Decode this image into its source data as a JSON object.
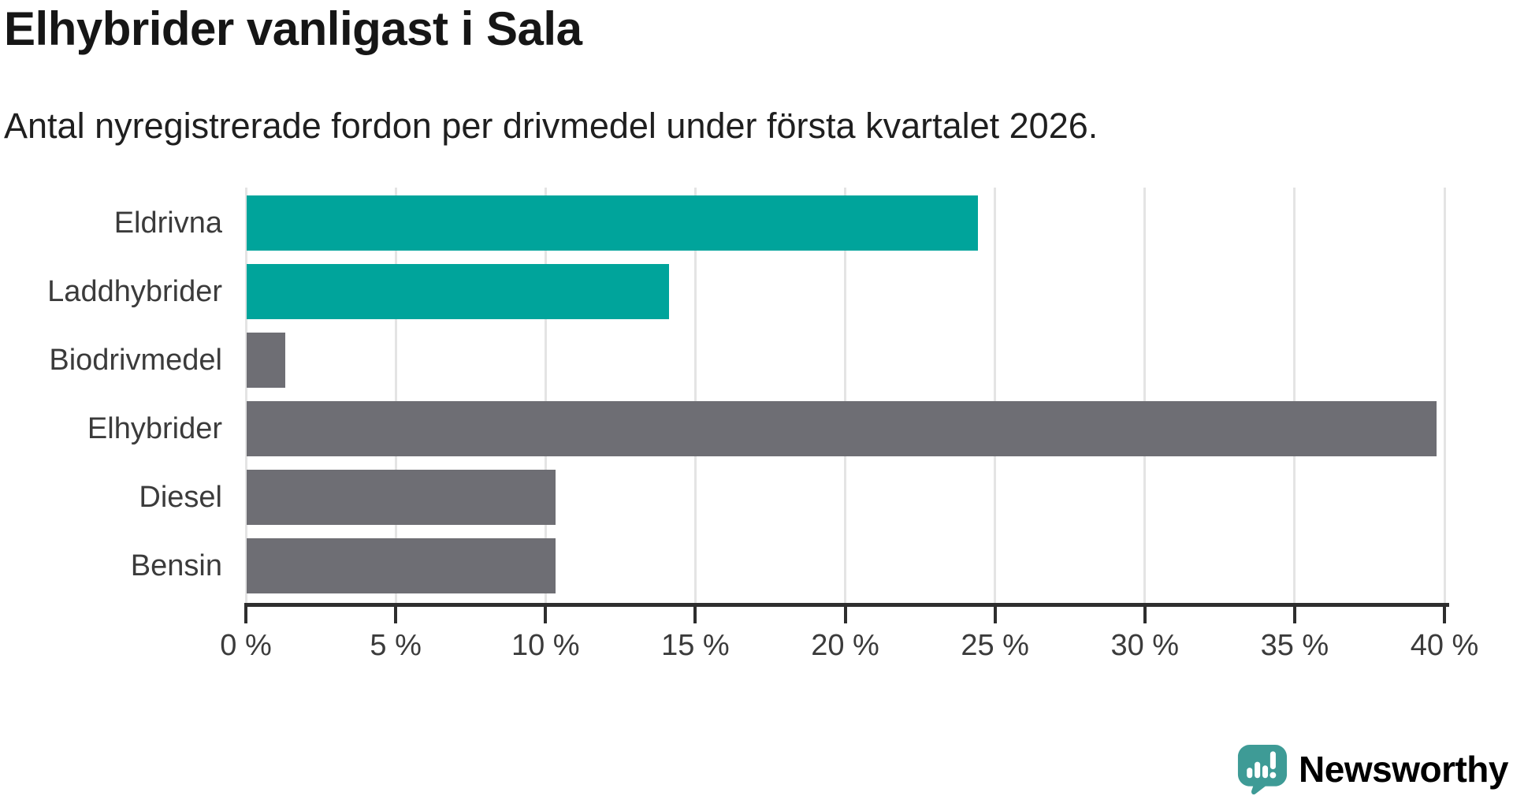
{
  "header": {
    "title": "Elhybrider vanligast i Sala",
    "subtitle": "Antal nyregistrerade fordon per drivmedel under första kvartalet 2026."
  },
  "chart_data": {
    "type": "bar",
    "orientation": "horizontal",
    "title": "Elhybrider vanligast i Sala",
    "subtitle": "Antal nyregistrerade fordon per drivmedel under första kvartalet 2026.",
    "categories": [
      "Eldrivna",
      "Laddhybrider",
      "Biodrivmedel",
      "Elhybrider",
      "Diesel",
      "Bensin"
    ],
    "values": [
      24.4,
      14.1,
      1.3,
      39.7,
      10.3,
      10.3
    ],
    "unit": "%",
    "bar_colors": [
      "#00A49B",
      "#00A49B",
      "#6E6E74",
      "#6E6E74",
      "#6E6E74",
      "#6E6E74"
    ],
    "highlight_color": "#00A49B",
    "default_color": "#6E6E74",
    "xlim": [
      0,
      40
    ],
    "x_ticks": [
      0,
      5,
      10,
      15,
      20,
      25,
      30,
      35,
      40
    ],
    "x_tick_labels": [
      "0 %",
      "5 %",
      "10 %",
      "15 %",
      "20 %",
      "25 %",
      "30 %",
      "35 %",
      "40 %"
    ],
    "grid": "vertical-gridlines-on",
    "legend": "none"
  },
  "branding": {
    "logo_text": "Newsworthy",
    "logo_color": "#3E9B96"
  }
}
